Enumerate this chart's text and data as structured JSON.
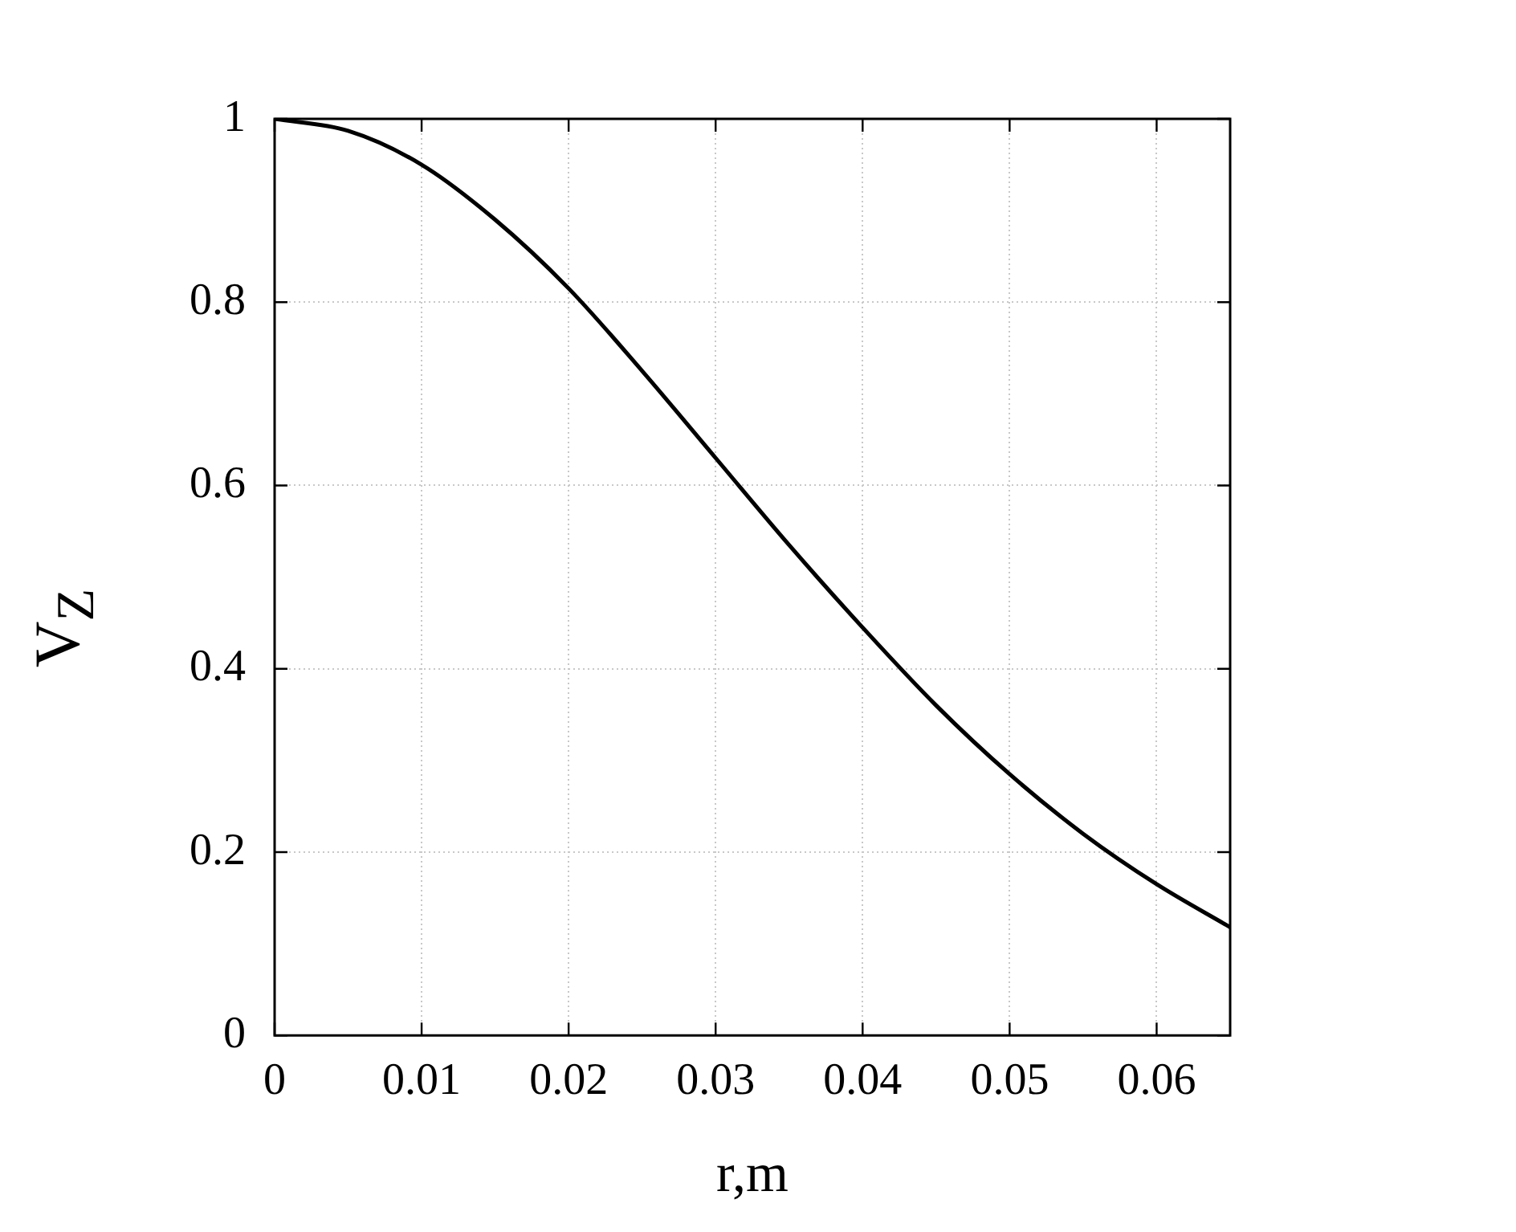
{
  "chart_data": {
    "type": "line",
    "xlabel": "r,m",
    "ylabel": "V$_{Z}$",
    "x": [
      0,
      0.005,
      0.01,
      0.015,
      0.02,
      0.025,
      0.03,
      0.035,
      0.04,
      0.045,
      0.05,
      0.055,
      0.06,
      0.065
    ],
    "series": [
      {
        "color": "#000000",
        "values": [
          1.0,
          0.987,
          0.95,
          0.89,
          0.815,
          0.725,
          0.63,
          0.535,
          0.445,
          0.36,
          0.285,
          0.22,
          0.165,
          0.118
        ]
      }
    ],
    "xlim": [
      0,
      0.065
    ],
    "xticks": [
      0,
      0.01,
      0.02,
      0.03,
      0.04,
      0.05,
      0.06
    ],
    "ylim": [
      0,
      1
    ],
    "yticks": [
      0,
      0.2,
      0.4,
      0.6,
      0.8,
      1
    ],
    "grid": true,
    "legend": false,
    "marker": "none",
    "line_style": "solid"
  }
}
